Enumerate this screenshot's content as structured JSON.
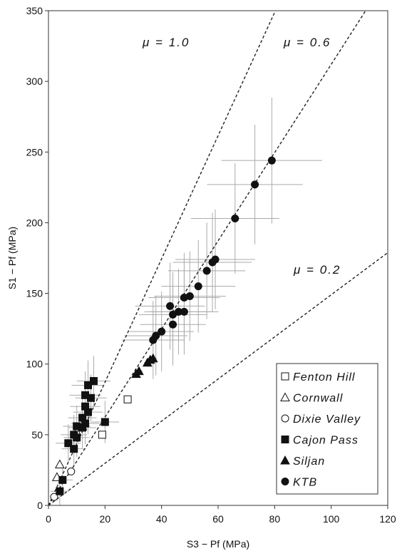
{
  "chart_data": {
    "type": "scatter",
    "xlabel": "S3 − Pf (MPa)",
    "ylabel": "S1 − Pf (MPa)",
    "xlim": [
      0,
      120
    ],
    "ylim": [
      0,
      350
    ],
    "x_ticks": [
      0,
      20,
      40,
      60,
      80,
      100,
      120
    ],
    "y_ticks": [
      0,
      50,
      100,
      150,
      200,
      250,
      300,
      350
    ],
    "grid": false,
    "legend_position": "bottom-right",
    "reference_lines": [
      {
        "label": "μ = 1.0",
        "slope": 4.36
      },
      {
        "label": "μ = 0.6",
        "slope": 3.12
      },
      {
        "label": "μ = 0.2",
        "slope": 1.49
      }
    ],
    "series": [
      {
        "name": "Fenton Hill",
        "marker": "open-square",
        "points": [
          [
            28,
            75
          ],
          [
            19,
            50
          ]
        ]
      },
      {
        "name": "Cornwall",
        "marker": "open-triangle",
        "points": [
          [
            4,
            29
          ],
          [
            3,
            20
          ],
          [
            10,
            52
          ],
          [
            12,
            56
          ]
        ]
      },
      {
        "name": "Dixie Valley",
        "marker": "open-circle",
        "points": [
          [
            8,
            24
          ],
          [
            2,
            6
          ]
        ]
      },
      {
        "name": "Cajon Pass",
        "marker": "filled-square",
        "points": [
          [
            16,
            88
          ],
          [
            14,
            85
          ],
          [
            13,
            78
          ],
          [
            15,
            76
          ],
          [
            13,
            70
          ],
          [
            14,
            66
          ],
          [
            12,
            62
          ],
          [
            10,
            56
          ],
          [
            12,
            55
          ],
          [
            9,
            50
          ],
          [
            10,
            48
          ],
          [
            7,
            44
          ],
          [
            9,
            40
          ],
          [
            13,
            58
          ],
          [
            20,
            59
          ],
          [
            5,
            18
          ],
          [
            4,
            10
          ]
        ],
        "error_x": 5,
        "error_y": 15
      },
      {
        "name": "Siljan",
        "marker": "filled-triangle",
        "points": [
          [
            31,
            93
          ],
          [
            32,
            95
          ],
          [
            35,
            101
          ],
          [
            37,
            104
          ],
          [
            36,
            103
          ]
        ],
        "error_x": 1,
        "error_y": 2
      },
      {
        "name": "KTB",
        "marker": "filled-circle",
        "points": [
          [
            79,
            244
          ],
          [
            73,
            227
          ],
          [
            66,
            203
          ],
          [
            59,
            174
          ],
          [
            58,
            172
          ],
          [
            56,
            166
          ],
          [
            53,
            155
          ],
          [
            50,
            148
          ],
          [
            48,
            147
          ],
          [
            48,
            137
          ],
          [
            46,
            137
          ],
          [
            43,
            141
          ],
          [
            44,
            135
          ],
          [
            44,
            128
          ],
          [
            40,
            123
          ],
          [
            38,
            120
          ],
          [
            37,
            117
          ]
        ],
        "error_x": 8,
        "error_y": 20
      }
    ]
  },
  "colors": {
    "marker": "#111111",
    "error_bar": "#aaaaaa",
    "ref_line": "#222222"
  }
}
